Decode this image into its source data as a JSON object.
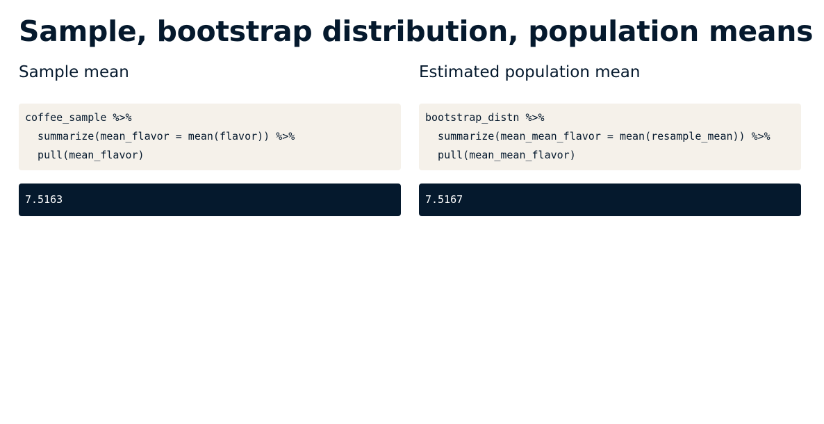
{
  "page": {
    "title": "Sample, bootstrap distribution, population means"
  },
  "left": {
    "heading": "Sample mean",
    "code_lines": [
      "coffee_sample %>%",
      "  summarize(mean_flavor = mean(flavor)) %>%",
      "  pull(mean_flavor)"
    ],
    "output": "7.5163"
  },
  "right": {
    "heading": "Estimated population mean",
    "code_lines": [
      "bootstrap_distn %>%",
      "  summarize(mean_mean_flavor = mean(resample_mean)) %>%",
      "  pull(mean_mean_flavor)"
    ],
    "output": "7.5167"
  },
  "colors": {
    "title_text": "#05192d",
    "code_background": "#f5f1ea",
    "output_background": "#05192d",
    "output_text": "#ffffff"
  }
}
